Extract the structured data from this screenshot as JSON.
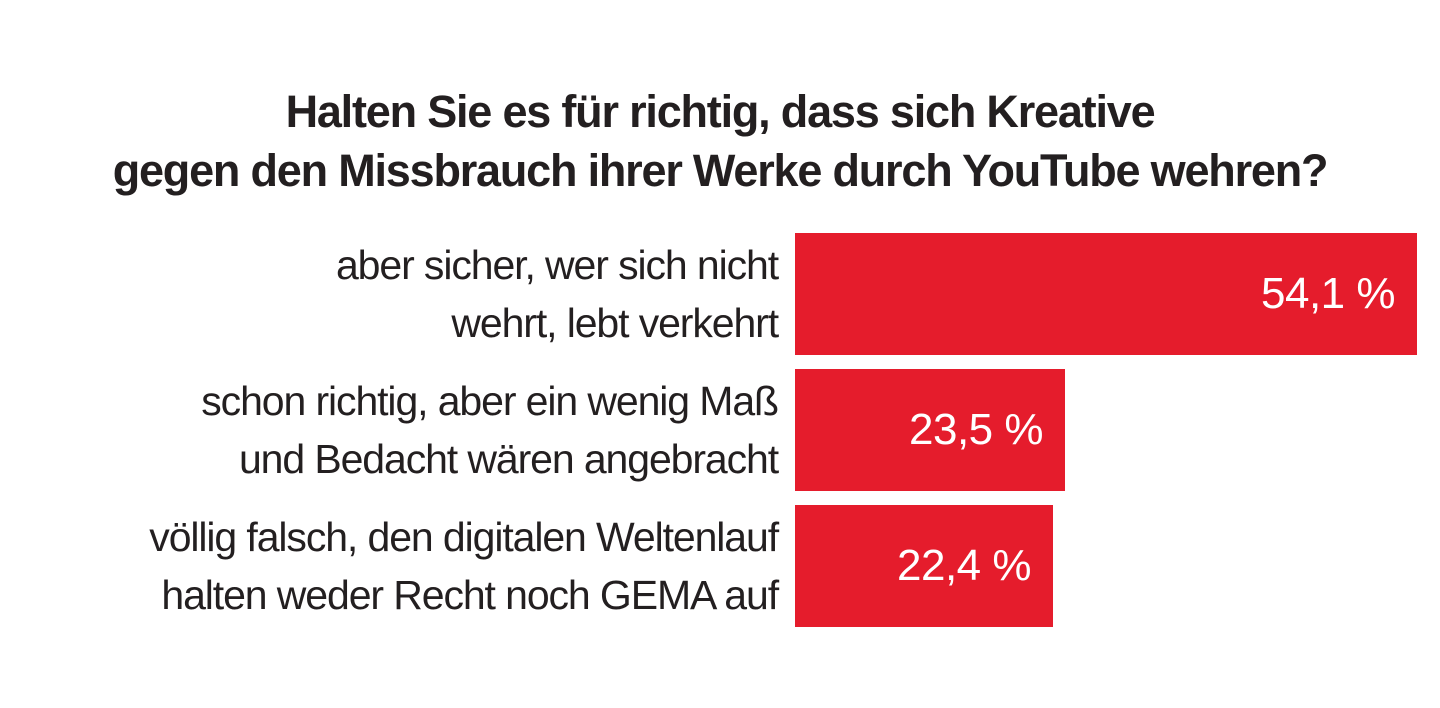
{
  "chart_data": {
    "type": "bar",
    "orientation": "horizontal",
    "title": "Halten Sie es für richtig, dass sich Kreative gegen den Missbrauch ihrer Werke durch YouTube wehren?",
    "title_lines": [
      "Halten Sie es für richtig, dass sich Kreative",
      "gegen den Missbrauch ihrer Werke durch YouTube wehren?"
    ],
    "categories": [
      "aber sicher, wer sich nicht wehrt, lebt verkehrt",
      "schon richtig, aber ein wenig Maß und Bedacht wären angebracht",
      "völlig falsch, den digitalen Weltenlauf halten weder Recht noch GEMA auf"
    ],
    "category_lines": [
      [
        "aber sicher, wer sich nicht",
        "wehrt, lebt verkehrt"
      ],
      [
        "schon richtig, aber ein wenig Maß",
        "und Bedacht wären angebracht"
      ],
      [
        "völlig falsch, den digitalen Weltenlauf",
        "halten weder Recht noch GEMA auf"
      ]
    ],
    "values": [
      54.1,
      23.5,
      22.4
    ],
    "value_labels": [
      "54,1 %",
      "23,5 %",
      "22,4 %"
    ],
    "unit": "%",
    "xlim": [
      0,
      54.1
    ],
    "bar_color": "#e51c2c",
    "value_label_color": "#ffffff",
    "grid": false,
    "legend": "none"
  }
}
